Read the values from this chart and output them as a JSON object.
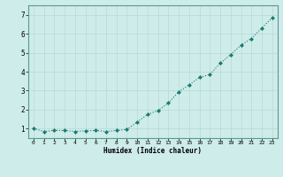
{
  "x": [
    0,
    1,
    2,
    3,
    4,
    5,
    6,
    7,
    8,
    9,
    10,
    11,
    12,
    13,
    14,
    15,
    16,
    17,
    18,
    19,
    20,
    21,
    22,
    23
  ],
  "y": [
    1.0,
    0.85,
    0.9,
    0.9,
    0.85,
    0.88,
    0.9,
    0.85,
    0.9,
    0.95,
    1.35,
    1.75,
    1.95,
    2.35,
    2.95,
    3.3,
    3.7,
    3.85,
    4.45,
    4.9,
    5.4,
    5.75,
    6.3,
    6.85
  ],
  "line_color": "#1a7a6e",
  "marker": "D",
  "marker_size": 2.0,
  "bg_color": "#ceecea",
  "grid_color": "#b8d8d6",
  "xlabel": "Humidex (Indice chaleur)",
  "xlim": [
    -0.5,
    23.5
  ],
  "ylim": [
    0.5,
    7.5
  ],
  "yticks": [
    1,
    2,
    3,
    4,
    5,
    6,
    7
  ],
  "xticks": [
    0,
    1,
    2,
    3,
    4,
    5,
    6,
    7,
    8,
    9,
    10,
    11,
    12,
    13,
    14,
    15,
    16,
    17,
    18,
    19,
    20,
    21,
    22,
    23
  ]
}
